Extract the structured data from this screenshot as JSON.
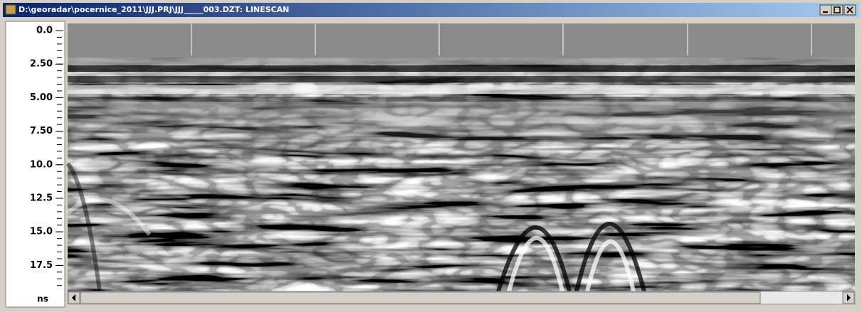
{
  "window": {
    "title": "D:\\georadar\\pocernice_2011\\JJJ.PRJ\\JJJ_____003.DZT: LINESCAN"
  },
  "axis": {
    "labels": [
      "0.0",
      "2.50",
      "5.00",
      "7.50",
      "10.0",
      "12.5",
      "15.0",
      "17.5"
    ],
    "unit": "ns"
  }
}
